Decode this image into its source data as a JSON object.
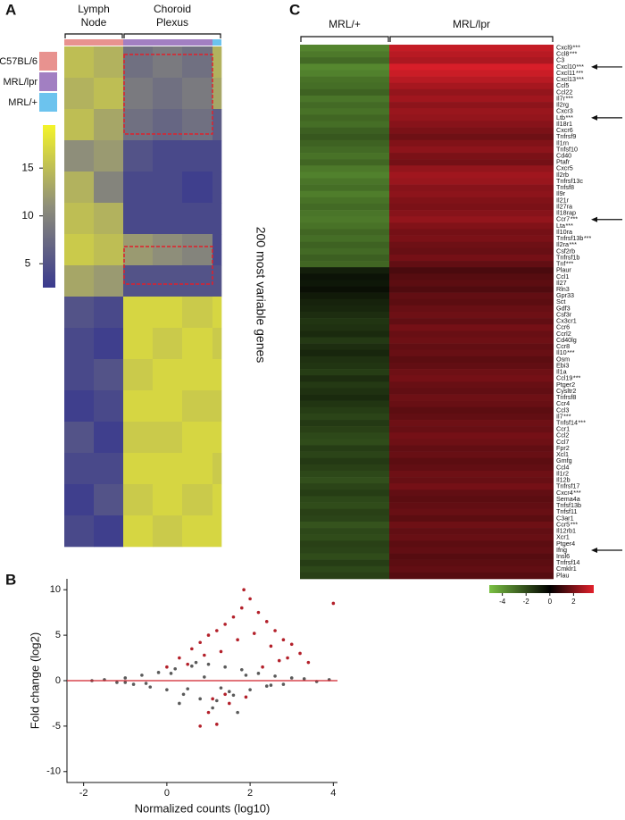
{
  "chart_data": [
    {
      "type": "heatmap",
      "panel": "A",
      "tissues": [
        [
          "Lymph",
          "Node"
        ],
        [
          "Choroid",
          "Plexus"
        ]
      ],
      "column_tissue": [
        0,
        0,
        1,
        1,
        1,
        1
      ],
      "column_sample": [
        0,
        0,
        1,
        1,
        1,
        2
      ],
      "samples": [
        {
          "name": "C57BL/6",
          "color": "#e8928f"
        },
        {
          "name": "MRL/lpr",
          "color": "#a27fc2"
        },
        {
          "name": "MRL/+",
          "color": "#6cc3ee"
        }
      ],
      "values": [
        [
          15,
          14,
          8,
          9,
          8,
          14
        ],
        [
          14,
          15,
          9,
          8,
          9,
          13
        ],
        [
          15,
          13,
          8,
          7,
          8,
          6
        ],
        [
          11,
          12,
          5,
          4,
          4,
          4
        ],
        [
          14,
          10,
          4,
          4,
          3,
          4
        ],
        [
          15,
          14,
          4,
          4,
          4,
          4
        ],
        [
          16,
          15,
          12,
          11,
          10,
          4
        ],
        [
          13,
          12,
          5,
          5,
          5,
          5
        ],
        [
          5,
          4,
          17,
          17,
          16,
          17
        ],
        [
          4,
          3,
          17,
          16,
          17,
          16
        ],
        [
          4,
          5,
          16,
          17,
          17,
          17
        ],
        [
          3,
          4,
          17,
          17,
          16,
          16
        ],
        [
          5,
          3,
          16,
          16,
          17,
          17
        ],
        [
          4,
          4,
          17,
          17,
          17,
          16
        ],
        [
          3,
          5,
          16,
          17,
          16,
          17
        ],
        [
          4,
          3,
          17,
          16,
          17,
          17
        ]
      ],
      "clim": [
        2.5,
        19.5
      ],
      "cticks": [
        5,
        10,
        15
      ],
      "colors": [
        "#3a3a8e",
        "#8e8e7a",
        "#f4f42a"
      ],
      "side_label": "200 most variable genes"
    },
    {
      "type": "scatter",
      "panel": "B",
      "xlabel": "Normalized counts (log10)",
      "ylabel": "Fold change (log2)",
      "xlim": [
        -2.4,
        4.1
      ],
      "ylim": [
        -11.2,
        11.2
      ],
      "xticks": [
        -2,
        0,
        2,
        4
      ],
      "yticks": [
        -10,
        -5,
        0,
        5,
        10
      ],
      "reference_line": 0,
      "reference_color": "#d0202a",
      "series": [
        {
          "color": "#5a5a5a",
          "x": [
            -1.8,
            -1.5,
            -1.2,
            -1.0,
            -0.8,
            -0.6,
            -0.4,
            -0.2,
            0,
            0.2,
            0.4,
            0.6,
            0.8,
            1.0,
            1.2,
            1.4,
            1.6,
            1.8,
            2.0,
            2.2,
            2.4,
            2.6,
            2.8,
            3.0,
            3.3,
            3.6,
            3.9,
            -0.5,
            0.1,
            0.5,
            0.9,
            1.1,
            1.5,
            1.9,
            2.5,
            0.3,
            0.7,
            1.3,
            -1.0,
            1.7
          ],
          "values": [
            0,
            0.1,
            -0.2,
            0.3,
            -0.4,
            0.6,
            -0.7,
            0.9,
            -1.0,
            1.3,
            -1.5,
            1.6,
            -2.0,
            1.8,
            -2.2,
            1.5,
            -1.6,
            1.2,
            -1.0,
            0.8,
            -0.6,
            0.5,
            -0.4,
            0.3,
            0.2,
            -0.1,
            0.1,
            -0.3,
            0.8,
            -0.9,
            0.4,
            -3.0,
            -1.2,
            0.6,
            -0.5,
            -2.5,
            2.0,
            -0.8,
            -0.2,
            -3.5
          ]
        },
        {
          "color": "#b3202a",
          "x": [
            0.0,
            0.3,
            0.6,
            0.8,
            1.0,
            1.2,
            1.4,
            1.6,
            1.8,
            2.0,
            2.2,
            2.4,
            2.6,
            2.8,
            3.0,
            3.2,
            3.4,
            0.5,
            0.9,
            1.3,
            1.7,
            2.1,
            2.5,
            2.9,
            1.1,
            1.5,
            1.9,
            2.3,
            2.7,
            1.0,
            1.2,
            1.4,
            0.8,
            4.0,
            1.85
          ],
          "values": [
            1.5,
            2.5,
            3.5,
            4.2,
            5.0,
            5.5,
            6.2,
            7.0,
            8.0,
            9.0,
            7.5,
            6.5,
            5.5,
            4.5,
            4.0,
            3.0,
            2.0,
            1.8,
            2.8,
            3.2,
            4.5,
            5.2,
            3.8,
            2.5,
            -2.0,
            -2.5,
            -1.8,
            1.5,
            2.2,
            -3.5,
            -4.8,
            -1.5,
            -5.0,
            8.5,
            10.0
          ]
        }
      ]
    },
    {
      "type": "heatmap",
      "panel": "C",
      "genes": [
        "Cxcl9",
        "Ccl8",
        "C3",
        "Cxcl10",
        "Cxcl11",
        "Cxcl13",
        "Ccl5",
        "Ccl22",
        "Il7r",
        "Il2rg",
        "Cxcr3",
        "Ltb",
        "Il18r1",
        "Cxcr6",
        "Tnfrsf9",
        "Il1rn",
        "Tnfsf10",
        "Cd40",
        "Ptafr",
        "Cxcr5",
        "Il2rb",
        "Tnfrsf13c",
        "Tnfsf8",
        "Il9r",
        "Il21r",
        "Il27ra",
        "Il18rap",
        "Ccr7",
        "Lta",
        "Il10ra",
        "Tnfrsf13b",
        "Il2ra",
        "Csf2rb",
        "Tnfrsf1b",
        "Tnf",
        "Plaur",
        "Ccl1",
        "Il27",
        "Rln3",
        "Gpr33",
        "Sct",
        "Gdf3",
        "Csf3r",
        "Cx3cr1",
        "Ccr6",
        "Ccrl2",
        "Cd40lg",
        "Ccr8",
        "Il10",
        "Osm",
        "Ebi3",
        "Il1a",
        "Ccl19",
        "Ptger2",
        "Cysltr2",
        "Tnfrsf8",
        "Ccr4",
        "Ccl3",
        "Il7",
        "Tnfsf14",
        "Ccr1",
        "Ccl2",
        "Ccl7",
        "Fpr2",
        "Xcl1",
        "Gmfg",
        "Ccl4",
        "Il1r2",
        "Il12b",
        "Tnfrsf17",
        "Cxcr4",
        "Sema4a",
        "Tnfsf13b",
        "Tnfsf11",
        "C3ar1",
        "Ccr5",
        "Il12rb1",
        "Xcr1",
        "Ptger4",
        "Ifng",
        "Insl6",
        "Tnfrsf14",
        "Cmklr1",
        "Plau"
      ],
      "significance": [
        "***",
        "***",
        null,
        "***",
        "***",
        "***",
        null,
        null,
        "***",
        null,
        null,
        "***",
        null,
        null,
        null,
        null,
        null,
        null,
        null,
        null,
        null,
        null,
        null,
        null,
        null,
        null,
        null,
        "***",
        "***",
        null,
        "***",
        "***",
        null,
        null,
        "***",
        null,
        null,
        null,
        null,
        null,
        null,
        null,
        null,
        null,
        null,
        null,
        null,
        null,
        "***",
        null,
        null,
        null,
        "***",
        null,
        null,
        null,
        null,
        null,
        "***",
        "***",
        null,
        null,
        null,
        null,
        null,
        null,
        null,
        null,
        null,
        null,
        "***",
        null,
        null,
        null,
        null,
        "***",
        null,
        null,
        null,
        null,
        null,
        null,
        null,
        null
      ],
      "arrows": [
        false,
        false,
        false,
        true,
        false,
        false,
        false,
        false,
        false,
        false,
        false,
        true,
        false,
        false,
        false,
        false,
        false,
        false,
        false,
        false,
        false,
        false,
        false,
        false,
        false,
        false,
        false,
        true,
        false,
        false,
        false,
        false,
        false,
        false,
        false,
        false,
        false,
        false,
        false,
        false,
        false,
        false,
        false,
        false,
        false,
        false,
        false,
        false,
        false,
        false,
        false,
        false,
        false,
        false,
        false,
        false,
        false,
        false,
        false,
        false,
        false,
        false,
        false,
        false,
        false,
        false,
        false,
        false,
        false,
        false,
        false,
        false,
        false,
        false,
        false,
        false,
        false,
        false,
        false,
        true,
        false,
        false,
        false,
        false
      ],
      "significance_color": "#e0202a",
      "series": [
        {
          "name": "MRL/+",
          "values": [
            -3.5,
            -3.2,
            -2.8,
            -3.6,
            -3.4,
            -3.0,
            -2.9,
            -2.6,
            -3.1,
            -2.8,
            -3.0,
            -2.7,
            -2.9,
            -2.5,
            -2.3,
            -2.6,
            -2.8,
            -3.0,
            -2.7,
            -3.2,
            -3.4,
            -3.1,
            -2.9,
            -3.3,
            -3.0,
            -2.8,
            -3.1,
            -3.2,
            -3.0,
            -2.7,
            -2.9,
            -2.6,
            -2.8,
            -2.5,
            -2.7,
            -0.8,
            -0.5,
            -0.6,
            -0.4,
            -0.7,
            -0.9,
            -1.0,
            -1.2,
            -1.4,
            -1.3,
            -1.1,
            -1.5,
            -1.2,
            -1.0,
            -1.3,
            -1.4,
            -1.6,
            -1.2,
            -1.5,
            -1.3,
            -1.1,
            -1.4,
            -1.6,
            -1.8,
            -1.5,
            -1.7,
            -1.9,
            -2.0,
            -1.6,
            -1.8,
            -1.5,
            -1.7,
            -1.9,
            -2.1,
            -1.8,
            -1.6,
            -1.9,
            -2.0,
            -1.7,
            -1.8,
            -2.2,
            -1.9,
            -2.0,
            -1.7,
            -1.8,
            -2.0,
            -1.6,
            -1.9,
            -1.7
          ]
        },
        {
          "name": "MRL/lpr",
          "values": [
            3.2,
            3.0,
            2.8,
            3.5,
            3.3,
            3.0,
            2.7,
            2.4,
            2.6,
            2.3,
            2.5,
            2.4,
            2.2,
            2.0,
            1.8,
            2.1,
            2.3,
            2.0,
            1.9,
            2.4,
            2.6,
            2.5,
            2.2,
            2.3,
            2.1,
            2.0,
            2.2,
            2.4,
            2.1,
            1.9,
            2.0,
            1.8,
            1.7,
            1.9,
            1.6,
            1.2,
            1.4,
            1.5,
            1.3,
            1.6,
            1.5,
            1.7,
            1.8,
            1.6,
            1.9,
            1.7,
            1.8,
            1.6,
            1.7,
            1.5,
            1.6,
            1.8,
            1.9,
            1.7,
            1.6,
            1.8,
            1.7,
            1.5,
            1.6,
            1.8,
            1.7,
            1.9,
            1.8,
            1.6,
            1.7,
            1.5,
            1.6,
            1.8,
            1.7,
            1.9,
            1.6,
            1.5,
            1.6,
            1.7,
            1.5,
            1.8,
            1.6,
            1.7,
            1.5,
            1.6,
            1.4,
            1.5,
            1.6,
            1.4
          ]
        }
      ],
      "clim": [
        -5.1,
        3.7
      ],
      "cticks": [
        -4,
        -2,
        0,
        2
      ],
      "center": 0,
      "colors": [
        "#7ac143",
        "#000000",
        "#e3202b"
      ]
    }
  ]
}
